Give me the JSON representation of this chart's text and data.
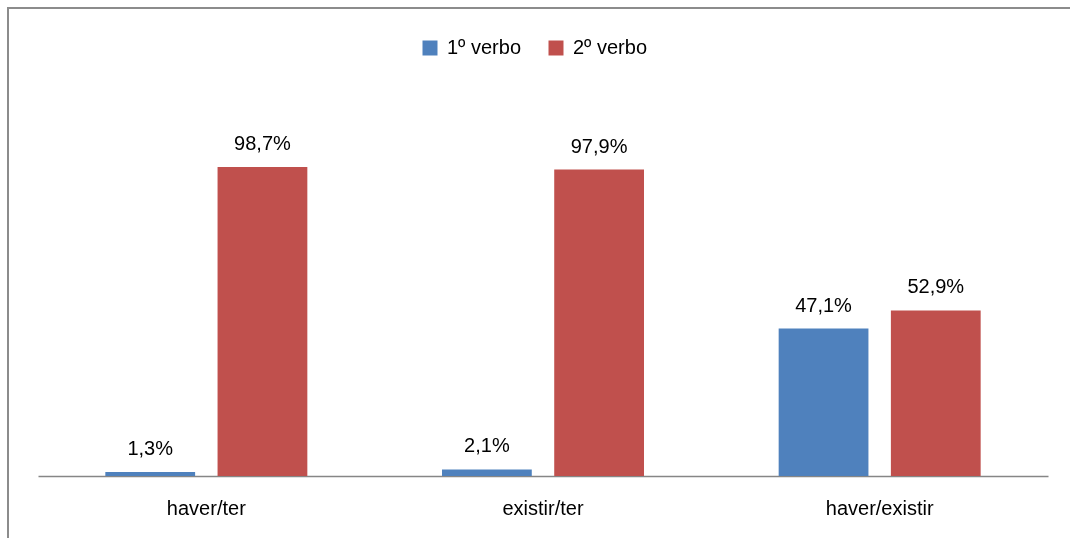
{
  "chart_data": {
    "type": "bar",
    "categories": [
      "haver/ter",
      "existir/ter",
      "haver/existir"
    ],
    "series": [
      {
        "name": "1º verbo",
        "color": "#4f81bd",
        "values": [
          1.3,
          2.1,
          47.1
        ],
        "value_labels": [
          "1,3%",
          "2,1%",
          "47,1%"
        ]
      },
      {
        "name": "2º verbo",
        "color": "#c0504d",
        "values": [
          98.7,
          97.9,
          52.9
        ],
        "value_labels": [
          "98,7%",
          "97,9%",
          "52,9%"
        ]
      }
    ],
    "legend": "top"
  }
}
